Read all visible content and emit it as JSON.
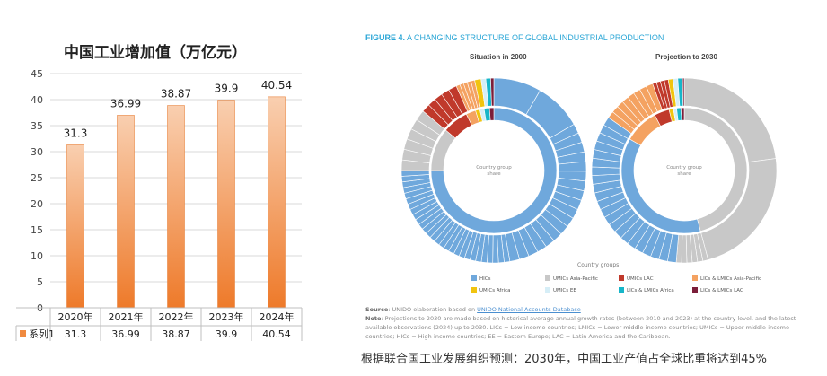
{
  "left_chart": {
    "title": "中国工业增加值（万亿元）",
    "series_label": "系列1",
    "series_color": "#f08a40",
    "chart_data": {
      "type": "bar",
      "title": "中国工业增加值（万亿元）",
      "categories": [
        "2020年",
        "2021年",
        "2022年",
        "2023年",
        "2024年"
      ],
      "series": [
        {
          "name": "系列1",
          "values": [
            31.3,
            36.99,
            38.87,
            39.9,
            40.54
          ]
        }
      ],
      "value_labels": [
        "31.3",
        "36.99",
        "38.87",
        "39.9",
        "40.54"
      ],
      "ylim": [
        0,
        45
      ],
      "yticks": [
        "0",
        "5",
        "10",
        "15",
        "20",
        "25",
        "30",
        "35",
        "40",
        "45"
      ],
      "grid": true,
      "data_table": true
    }
  },
  "right_figure": {
    "title_bold": "FIGURE 4.",
    "title_rest": " A CHANGING STRUCTURE OF GLOBAL INDUSTRIAL PRODUCTION",
    "donut_2000_title": "Situation in 2000",
    "donut_2030_title": "Projection to 2030",
    "center_text_line1": "Country group",
    "center_text_line2": "share",
    "legend_title": "Country groups",
    "legend": [
      {
        "label": "HICs",
        "color": "#6fa8dc"
      },
      {
        "label": "UMICs Asia-Pacific",
        "color": "#c8c8c8"
      },
      {
        "label": "UMICs LAC",
        "color": "#c0392b"
      },
      {
        "label": "LICs & LMICs Asia-Pacific",
        "color": "#f4a261"
      },
      {
        "label": "UMICs Africa",
        "color": "#f1c40f"
      },
      {
        "label": "UMICs EE",
        "color": "#d6eef7"
      },
      {
        "label": "LICs & LMICs Africa",
        "color": "#17b6c9"
      },
      {
        "label": "LICs & LMICs LAC",
        "color": "#7b1e3a"
      }
    ],
    "source_bold": "Source",
    "source_text": ": UNIDO elaboration based on ",
    "source_link": "UNIDO National Accounts Database",
    "note_bold": "Note",
    "note_text": ": Projections to 2030 are made based on historical average annual growth rates (between 2010 and 2023) at the country level, and the latest available observations (2024) up to 2030. LICs = Low-income countries; LMICs = Lower middle-income countries; UMICs = Upper middle-income countries; HICs = High-income countries; EE = Eastern Europe; LAC = Latin America and the Caribbean."
  },
  "caption": "根据联合国工业发展组织预测：2030年，中国工业产值占全球比重将达到45%"
}
